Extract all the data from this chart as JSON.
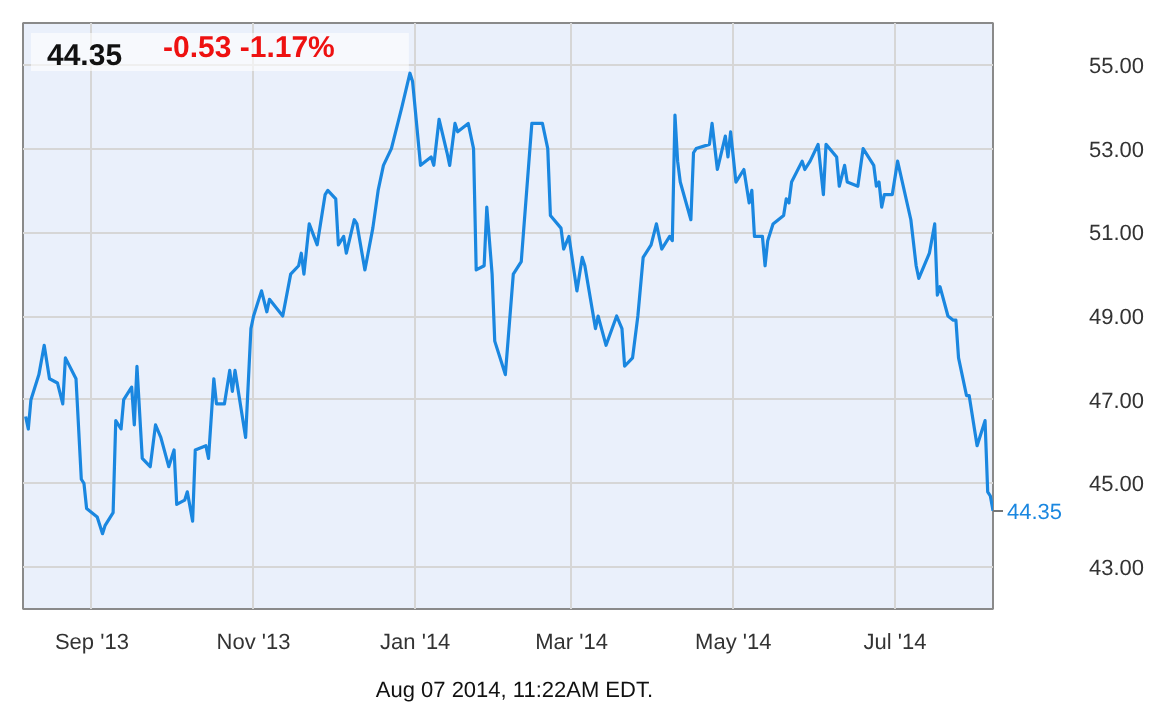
{
  "chart_data": {
    "type": "line",
    "title": "44.35",
    "subtitle": "-0.53  -1.17%",
    "annotations": [
      {
        "text": "44.35",
        "x": "2014-08-07",
        "y": 44.35
      },
      "Aug 07 2014, 11:22AM EDT."
    ],
    "color": "#1a87e0",
    "grid": true,
    "xlim": [
      "2013-08-06",
      "2014-08-07"
    ],
    "ylim": [
      42,
      56
    ],
    "xticks": [
      {
        "value": "2013-09-01",
        "label": "Sep '13"
      },
      {
        "value": "2013-11-01",
        "label": "Nov '13"
      },
      {
        "value": "2014-01-01",
        "label": "Jan '14"
      },
      {
        "value": "2014-03-01",
        "label": "Mar '14"
      },
      {
        "value": "2014-05-01",
        "label": "May '14"
      },
      {
        "value": "2014-07-01",
        "label": "Jul '14"
      }
    ],
    "yticks": [
      {
        "value": 43,
        "label": "43.00"
      },
      {
        "value": 45,
        "label": "45.00"
      },
      {
        "value": 47,
        "label": "47.00"
      },
      {
        "value": 49,
        "label": "49.00"
      },
      {
        "value": 51,
        "label": "51.00"
      },
      {
        "value": 53,
        "label": "53.00"
      },
      {
        "value": 55,
        "label": "55.00"
      }
    ],
    "x": [
      "2013-08-07",
      "2013-08-08",
      "2013-08-09",
      "2013-08-12",
      "2013-08-14",
      "2013-08-16",
      "2013-08-19",
      "2013-08-21",
      "2013-08-22",
      "2013-08-26",
      "2013-08-28",
      "2013-08-29",
      "2013-08-30",
      "2013-09-03",
      "2013-09-05",
      "2013-09-06",
      "2013-09-09",
      "2013-09-10",
      "2013-09-12",
      "2013-09-13",
      "2013-09-16",
      "2013-09-17",
      "2013-09-18",
      "2013-09-20",
      "2013-09-23",
      "2013-09-25",
      "2013-09-27",
      "2013-09-30",
      "2013-10-02",
      "2013-10-03",
      "2013-10-06",
      "2013-10-07",
      "2013-10-09",
      "2013-10-10",
      "2013-10-14",
      "2013-10-15",
      "2013-10-17",
      "2013-10-18",
      "2013-10-21",
      "2013-10-23",
      "2013-10-24",
      "2013-10-25",
      "2013-10-29",
      "2013-10-31",
      "2013-11-01",
      "2013-11-04",
      "2013-11-06",
      "2013-11-07",
      "2013-11-12",
      "2013-11-15",
      "2013-11-18",
      "2013-11-19",
      "2013-11-20",
      "2013-11-22",
      "2013-11-25",
      "2013-11-28",
      "2013-11-29",
      "2013-12-02",
      "2013-12-03",
      "2013-12-05",
      "2013-12-06",
      "2013-12-09",
      "2013-12-10",
      "2013-12-13",
      "2013-12-16",
      "2013-12-18",
      "2013-12-20",
      "2013-12-23",
      "2013-12-27",
      "2013-12-30",
      "2013-12-31",
      "2014-01-03",
      "2014-01-07",
      "2014-01-08",
      "2014-01-10",
      "2014-01-13",
      "2014-01-14",
      "2014-01-16",
      "2014-01-17",
      "2014-01-21",
      "2014-01-23",
      "2014-01-24",
      "2014-01-27",
      "2014-01-28",
      "2014-01-30",
      "2014-01-31",
      "2014-02-04",
      "2014-02-07",
      "2014-02-10",
      "2014-02-14",
      "2014-02-18",
      "2014-02-20",
      "2014-02-21",
      "2014-02-25",
      "2014-02-26",
      "2014-02-28",
      "2014-03-03",
      "2014-03-05",
      "2014-03-06",
      "2014-03-10",
      "2014-03-11",
      "2014-03-14",
      "2014-03-18",
      "2014-03-20",
      "2014-03-21",
      "2014-03-24",
      "2014-03-26",
      "2014-03-28",
      "2014-03-31",
      "2014-04-02",
      "2014-04-04",
      "2014-04-07",
      "2014-04-08",
      "2014-04-09",
      "2014-04-10",
      "2014-04-11",
      "2014-04-15",
      "2014-04-16",
      "2014-04-17",
      "2014-04-22",
      "2014-04-23",
      "2014-04-25",
      "2014-04-28",
      "2014-04-29",
      "2014-04-30",
      "2014-05-02",
      "2014-05-05",
      "2014-05-07",
      "2014-05-08",
      "2014-05-09",
      "2014-05-12",
      "2014-05-13",
      "2014-05-14",
      "2014-05-16",
      "2014-05-20",
      "2014-05-21",
      "2014-05-22",
      "2014-05-23",
      "2014-05-27",
      "2014-05-28",
      "2014-05-30",
      "2014-06-02",
      "2014-06-04",
      "2014-06-05",
      "2014-06-09",
      "2014-06-10",
      "2014-06-12",
      "2014-06-13",
      "2014-06-17",
      "2014-06-19",
      "2014-06-23",
      "2014-06-24",
      "2014-06-25",
      "2014-06-26",
      "2014-06-27",
      "2014-06-30",
      "2014-07-02",
      "2014-07-07",
      "2014-07-09",
      "2014-07-10",
      "2014-07-14",
      "2014-07-16",
      "2014-07-17",
      "2014-07-18",
      "2014-07-21",
      "2014-07-23",
      "2014-07-24",
      "2014-07-25",
      "2014-07-28",
      "2014-07-29",
      "2014-08-01",
      "2014-08-04",
      "2014-08-05",
      "2014-08-06",
      "2014-08-07"
    ],
    "values": [
      46.6,
      46.3,
      47.0,
      47.6,
      48.3,
      47.5,
      47.4,
      46.9,
      48.0,
      47.5,
      45.1,
      45.0,
      44.4,
      44.2,
      43.8,
      44.0,
      44.3,
      46.5,
      46.3,
      47.0,
      47.3,
      46.4,
      47.8,
      45.6,
      45.4,
      46.4,
      46.1,
      45.4,
      45.8,
      44.5,
      44.6,
      44.8,
      44.1,
      45.8,
      45.9,
      45.6,
      47.5,
      46.9,
      46.9,
      47.7,
      47.2,
      47.7,
      46.1,
      48.7,
      49.0,
      49.6,
      49.1,
      49.4,
      49.0,
      50.0,
      50.2,
      50.5,
      50.0,
      51.2,
      50.7,
      51.9,
      52.0,
      51.8,
      50.7,
      50.9,
      50.5,
      51.3,
      51.2,
      50.1,
      51.1,
      52.0,
      52.6,
      53.0,
      54.0,
      54.8,
      54.6,
      52.6,
      52.8,
      52.6,
      53.7,
      52.9,
      52.6,
      53.6,
      53.4,
      53.6,
      53.0,
      50.1,
      50.2,
      51.6,
      50.0,
      48.4,
      47.6,
      50.0,
      50.3,
      53.6,
      53.6,
      53.0,
      51.4,
      51.1,
      50.6,
      50.9,
      49.6,
      50.4,
      50.2,
      48.7,
      49.0,
      48.3,
      49.0,
      48.7,
      47.8,
      48.0,
      49.0,
      50.4,
      50.7,
      51.2,
      50.6,
      50.9,
      50.8,
      53.8,
      52.7,
      52.2,
      51.3,
      52.9,
      53.0,
      53.1,
      53.6,
      52.5,
      53.3,
      52.8,
      53.4,
      52.2,
      52.5,
      51.7,
      52.0,
      50.9,
      50.9,
      50.2,
      50.8,
      51.2,
      51.4,
      51.8,
      51.7,
      52.2,
      52.7,
      52.5,
      52.7,
      53.1,
      51.9,
      53.1,
      52.8,
      52.1,
      52.6,
      52.2,
      52.1,
      53.0,
      52.6,
      52.1,
      52.2,
      51.6,
      51.9,
      51.9,
      52.7,
      51.3,
      50.2,
      49.9,
      50.5,
      51.2,
      49.5,
      49.7,
      49.0,
      48.9,
      48.9,
      48.0,
      47.1,
      47.1,
      45.9,
      46.5,
      44.8,
      44.7,
      44.35
    ]
  }
}
